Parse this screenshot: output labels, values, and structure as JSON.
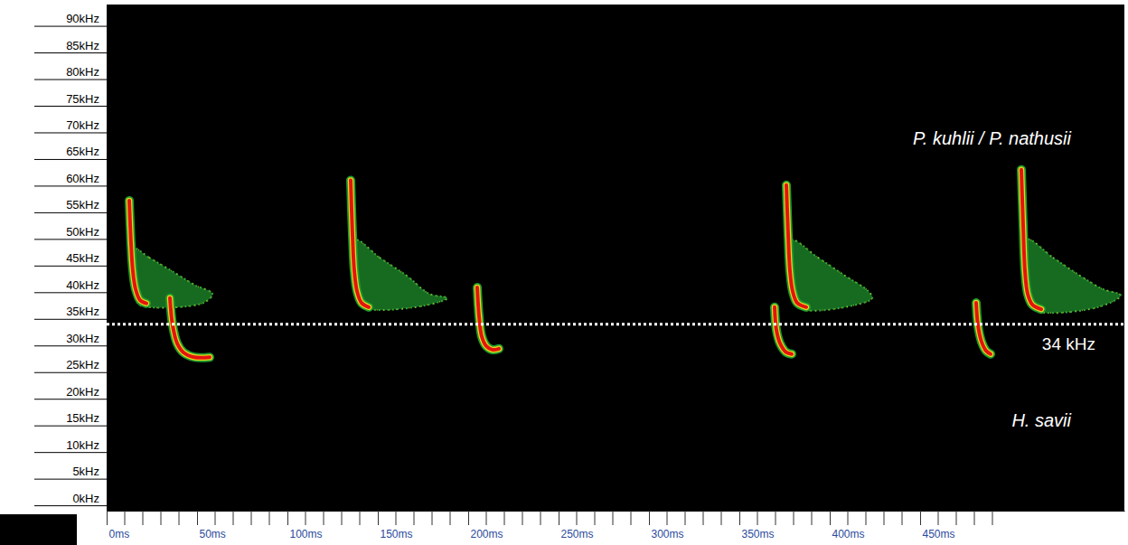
{
  "chart_data": {
    "type": "spectrogram",
    "xlim": [
      0,
      563
    ],
    "ylim": [
      -1,
      94
    ],
    "xticks": [
      {
        "value": 0,
        "label": "0ms"
      },
      {
        "value": 50,
        "label": "50ms"
      },
      {
        "value": 100,
        "label": "100ms"
      },
      {
        "value": 150,
        "label": "150ms"
      },
      {
        "value": 200,
        "label": "200ms"
      },
      {
        "value": 250,
        "label": "250ms"
      },
      {
        "value": 300,
        "label": "300ms"
      },
      {
        "value": 350,
        "label": "350ms"
      },
      {
        "value": 400,
        "label": "400ms"
      },
      {
        "value": 450,
        "label": "450ms"
      }
    ],
    "x_minor_ticks": [
      10,
      20,
      30,
      40,
      60,
      70,
      80,
      90,
      110,
      120,
      130,
      140,
      160,
      170,
      180,
      190,
      210,
      220,
      230,
      240,
      260,
      270,
      280,
      290,
      310,
      320,
      330,
      340,
      360,
      370,
      380,
      390,
      410,
      420,
      430,
      440,
      460,
      470,
      480,
      490
    ],
    "yticks": [
      {
        "value": 0,
        "label": "0kHz"
      },
      {
        "value": 5,
        "label": "5kHz"
      },
      {
        "value": 10,
        "label": "10kHz"
      },
      {
        "value": 15,
        "label": "15kHz"
      },
      {
        "value": 20,
        "label": "20kHz"
      },
      {
        "value": 25,
        "label": "25kHz"
      },
      {
        "value": 30,
        "label": "30kHz"
      },
      {
        "value": 35,
        "label": "35kHz"
      },
      {
        "value": 40,
        "label": "40kHz"
      },
      {
        "value": 45,
        "label": "45kHz"
      },
      {
        "value": 50,
        "label": "50kHz"
      },
      {
        "value": 55,
        "label": "55kHz"
      },
      {
        "value": 60,
        "label": "60kHz"
      },
      {
        "value": 65,
        "label": "65kHz"
      },
      {
        "value": 70,
        "label": "70kHz"
      },
      {
        "value": 75,
        "label": "75kHz"
      },
      {
        "value": 80,
        "label": "80kHz"
      },
      {
        "value": 85,
        "label": "85kHz"
      },
      {
        "value": 90,
        "label": "90kHz"
      }
    ],
    "series": [
      {
        "name": "P. kuhlii / P. nathusii",
        "calls": [
          {
            "x": [
              12.5,
              13.5,
              14.5,
              16,
              18.5,
              22
            ],
            "y": [
              57.2,
              49.1,
              44.0,
              40.6,
              38.5,
              37.9
            ],
            "echo_x": [
              15,
              23.5,
              36,
              48.5,
              58.5,
              53.5,
              23.5,
              17
            ],
            "echo_y": [
              48.2,
              46.5,
              44.0,
              41.4,
              39.7,
              38.0,
              37.2,
              38.0
            ]
          },
          {
            "x": [
              135,
              136,
              137,
              138.5,
              141,
              145
            ],
            "y": [
              61.0,
              50.8,
              44.0,
              40.2,
              38.0,
              37.2
            ],
            "echo_x": [
              137.5,
              151,
              166,
              178.5,
              188.5,
              176,
              146,
              139
            ],
            "echo_y": [
              49.8,
              46.5,
              43.1,
              39.7,
              38.9,
              37.5,
              36.8,
              38.0
            ]
          },
          {
            "x": [
              376,
              377,
              378,
              379.5,
              382,
              387
            ],
            "y": [
              60.1,
              50.8,
              44.0,
              40.2,
              38.0,
              37.2
            ],
            "echo_x": [
              378.5,
              393.5,
              408.5,
              421,
              423.5,
              408.5,
              386,
              380
            ],
            "echo_y": [
              49.8,
              46.5,
              43.1,
              40.3,
              38.9,
              37.2,
              36.7,
              38.0
            ]
          },
          {
            "x": [
              506,
              507,
              508,
              509.5,
              512,
              517
            ],
            "y": [
              63.0,
              52.5,
              44.0,
              39.7,
              37.7,
              36.8
            ],
            "echo_x": [
              509,
              523.5,
              538.5,
              551,
              561,
              548.5,
              516,
              511
            ],
            "echo_y": [
              49.9,
              46.5,
              43.1,
              40.6,
              39.4,
              37.2,
              36.3,
              37.5
            ]
          }
        ]
      },
      {
        "name": "H. savii",
        "calls": [
          {
            "x": [
              35,
              36.5,
              39,
              42.5,
              48.5,
              57
            ],
            "y": [
              38.9,
              33.8,
              30.4,
              28.7,
              27.8,
              27.8
            ]
          },
          {
            "x": [
              205,
              206,
              207.5,
              210,
              213.5,
              217
            ],
            "y": [
              40.9,
              35.5,
              31.7,
              29.9,
              29.2,
              29.4
            ]
          },
          {
            "x": [
              369.5,
              370.5,
              372.5,
              376,
              379
            ],
            "y": [
              37.2,
              32.9,
              30.4,
              28.7,
              28.4
            ]
          },
          {
            "x": [
              481,
              482,
              484,
              486.5,
              489
            ],
            "y": [
              38.0,
              33.8,
              30.7,
              29.0,
              28.4
            ]
          }
        ]
      }
    ],
    "reference_lines": [
      {
        "y": 34,
        "label": "34 kHz"
      }
    ]
  }
}
